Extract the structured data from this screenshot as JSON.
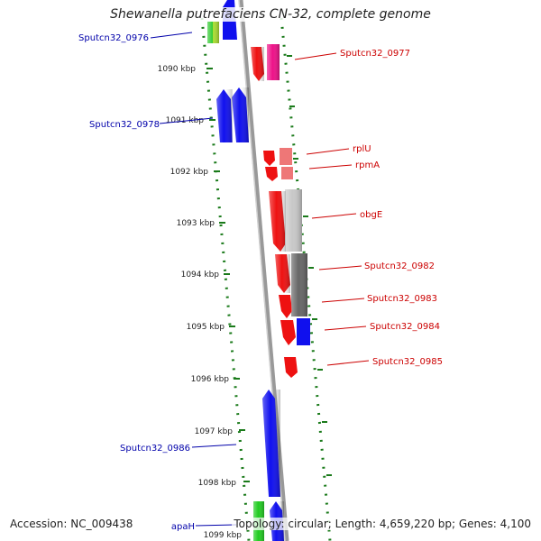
{
  "title": "Shewanella putrefaciens CN-32, complete genome",
  "footer": {
    "accession": "Accession: NC_009438",
    "topology": "Topology: circular; Length: 4,659,220 bp; Genes: 4,100"
  },
  "colors": {
    "forward_label": "#cc0000",
    "reverse_label": "#0000aa",
    "backbone": "#888888",
    "kbp_tick": "#1a7a1a"
  },
  "kbp_scale": [
    {
      "label": "1090 kbp"
    },
    {
      "label": "1091 kbp"
    },
    {
      "label": "1092 kbp"
    },
    {
      "label": "1093 kbp"
    },
    {
      "label": "1094 kbp"
    },
    {
      "label": "1095 kbp"
    },
    {
      "label": "1096 kbp"
    },
    {
      "label": "1097 kbp"
    },
    {
      "label": "1098 kbp"
    },
    {
      "label": "1099 kbp"
    }
  ],
  "genes": [
    {
      "label": "Sputcn32_0976",
      "strand": "reverse",
      "color": "#1010ee"
    },
    {
      "label": "Sputcn32_0977",
      "strand": "forward",
      "color": "#ee1111"
    },
    {
      "label": "Sputcn32_0978",
      "strand": "reverse",
      "color": "#1010ee"
    },
    {
      "label": "rplU",
      "strand": "forward",
      "color": "#ee1111"
    },
    {
      "label": "rpmA",
      "strand": "forward",
      "color": "#ee1111"
    },
    {
      "label": "obgE",
      "strand": "forward",
      "color": "#ee1111"
    },
    {
      "label": "Sputcn32_0982",
      "strand": "forward",
      "color": "#ee1111"
    },
    {
      "label": "Sputcn32_0983",
      "strand": "forward",
      "color": "#ee1111"
    },
    {
      "label": "Sputcn32_0984",
      "strand": "forward",
      "color": "#ee1111"
    },
    {
      "label": "Sputcn32_0985",
      "strand": "forward",
      "color": "#ee1111"
    },
    {
      "label": "Sputcn32_0986",
      "strand": "reverse",
      "color": "#1010ee"
    },
    {
      "label": "apaH",
      "strand": "reverse",
      "color": "#1010ee"
    }
  ]
}
